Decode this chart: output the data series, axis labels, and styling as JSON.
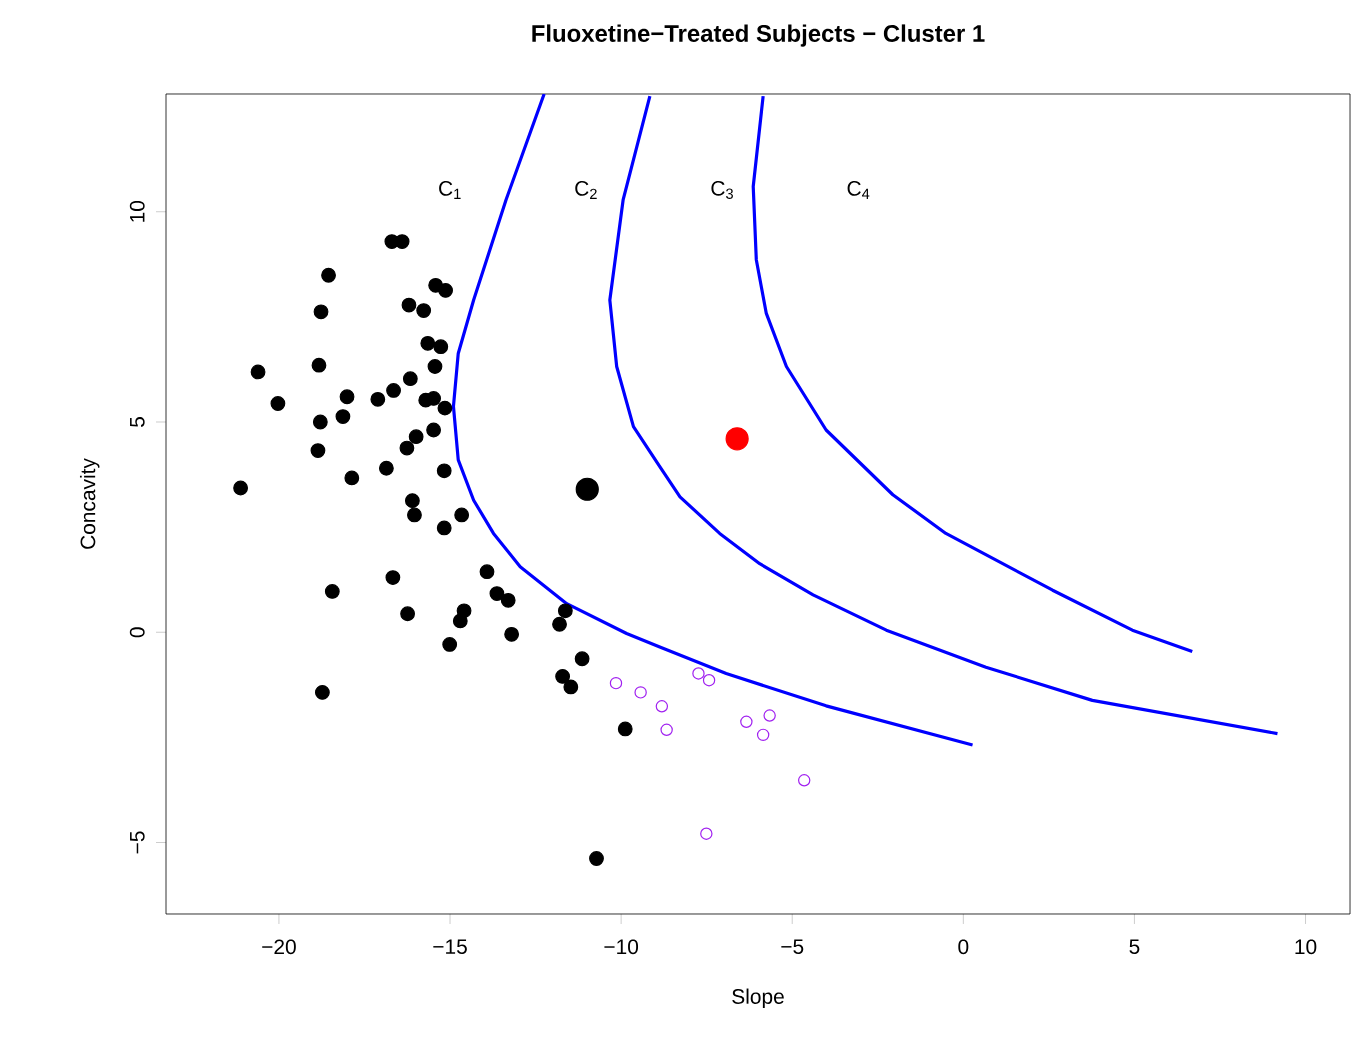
{
  "chart_data": {
    "type": "scatter",
    "title": "Fluoxetine−Treated Subjects − Cluster 1",
    "xlabel": "Slope",
    "ylabel": "Concavity",
    "xlim": [
      -23.3,
      11.3
    ],
    "ylim": [
      -6.7,
      12.8
    ],
    "xticks": [
      {
        "value": -20,
        "label": "−20"
      },
      {
        "value": -15,
        "label": "−15"
      },
      {
        "value": -10,
        "label": "−10"
      },
      {
        "value": -5,
        "label": "−5"
      },
      {
        "value": 0,
        "label": "0"
      },
      {
        "value": 5,
        "label": "5"
      },
      {
        "value": 10,
        "label": "10"
      }
    ],
    "yticks": [
      {
        "value": -5,
        "label": "−5"
      },
      {
        "value": 0,
        "label": "0"
      },
      {
        "value": 5,
        "label": "5"
      },
      {
        "value": 10,
        "label": "10"
      }
    ],
    "grid": false,
    "marker": "circle",
    "series": [
      {
        "color": "#000000",
        "x": [
          -16.7,
          -16.4,
          -18.55,
          -15.42,
          -15.13,
          -16.2,
          -15.77,
          -18.77,
          -15.65,
          -15.27,
          -15.44,
          -20.61,
          -18.83,
          -16.16,
          -20.03,
          -18.01,
          -18.13,
          -17.11,
          -16.65,
          -15.71,
          -15.48,
          -15.15,
          -18.79,
          -15.48,
          -15.99,
          -16.26,
          -18.86,
          -17.87,
          -16.86,
          -15.17,
          -21.12,
          -16.1,
          -16.04,
          -14.66,
          -15.17,
          -13.92,
          -13.63,
          -13.3,
          -18.44,
          -16.67,
          -16.24,
          -14.59,
          -14.7,
          -11.63,
          -11.8,
          -13.2,
          -15.01,
          -11.14,
          -11.71,
          -11.47,
          -18.73,
          -9.88,
          -10.72
        ],
        "values": [
          9.29,
          9.29,
          8.49,
          8.25,
          8.13,
          7.78,
          7.65,
          7.62,
          6.87,
          6.79,
          6.32,
          6.19,
          6.35,
          6.03,
          5.44,
          5.6,
          5.13,
          5.54,
          5.75,
          5.52,
          5.56,
          5.33,
          5.0,
          4.81,
          4.65,
          4.38,
          4.32,
          3.67,
          3.9,
          3.84,
          3.43,
          3.13,
          2.79,
          2.79,
          2.48,
          1.44,
          0.92,
          0.76,
          0.97,
          1.3,
          0.44,
          0.51,
          0.27,
          0.51,
          0.19,
          -0.05,
          -0.29,
          -0.63,
          -1.05,
          -1.3,
          -1.43,
          -2.3,
          -5.38
        ]
      },
      {
        "color": "#a020f0",
        "x": [
          -10.15,
          -9.43,
          -8.81,
          -8.67,
          -7.74,
          -7.43,
          -6.34,
          -5.66,
          -5.85,
          -4.65,
          -7.51
        ],
        "values": [
          -1.21,
          -1.43,
          -1.76,
          -2.32,
          -0.98,
          -1.14,
          -2.13,
          -1.98,
          -2.44,
          -3.52,
          -4.79
        ]
      },
      {
        "color": "#000000",
        "x": [
          -10.99
        ],
        "values": [
          3.4
        ]
      },
      {
        "color": "#ff0000",
        "x": [
          -6.61
        ],
        "values": [
          4.6
        ]
      },
      {
        "type": "line",
        "color": "#0000ff",
        "marker": "none",
        "x": [
          -12.25,
          -13.36,
          -14.31,
          -14.76,
          -14.9,
          -14.76,
          -14.31,
          -13.73,
          -12.95,
          -11.59,
          -9.84,
          -8.87,
          -6.93,
          -4.01,
          0.27
        ],
        "values": [
          12.8,
          10.29,
          7.9,
          6.63,
          5.37,
          4.1,
          3.14,
          2.35,
          1.56,
          0.68,
          -0.03,
          -0.35,
          -0.98,
          -1.75,
          -2.68
        ]
      },
      {
        "type": "line",
        "color": "#0000ff",
        "marker": "none",
        "x": [
          -9.16,
          -9.94,
          -10.33,
          -10.13,
          -9.64,
          -8.87,
          -8.28,
          -7.12,
          -5.95,
          -4.39,
          -2.25,
          0.66,
          3.77,
          9.18
        ],
        "values": [
          12.75,
          10.29,
          7.9,
          6.32,
          4.89,
          3.94,
          3.22,
          2.35,
          1.63,
          0.89,
          0.05,
          -0.83,
          -1.62,
          -2.41
        ]
      },
      {
        "type": "line",
        "color": "#0000ff",
        "marker": "none",
        "x": [
          -5.85,
          -6.14,
          -6.05,
          -5.76,
          -5.17,
          -4.01,
          -2.06,
          -0.51,
          2.61,
          4.94,
          6.69
        ],
        "values": [
          12.75,
          10.6,
          8.86,
          7.59,
          6.32,
          4.81,
          3.27,
          2.35,
          1.0,
          0.05,
          -0.46
        ]
      }
    ],
    "annotations": [
      "C$_{1}$",
      "C$_{2}$",
      "C$_{3}$",
      "C$_{4}$"
    ]
  }
}
